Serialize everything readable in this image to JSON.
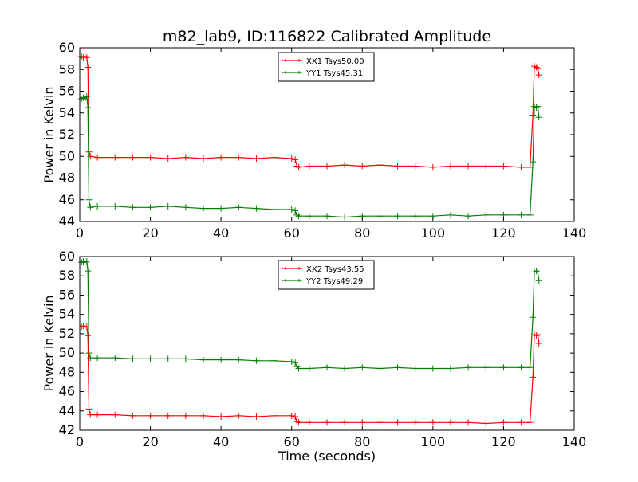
{
  "chart_data": [
    {
      "type": "line",
      "title": "m82_lab9, ID:116822 Calibrated Amplitude",
      "xlabel": "",
      "ylabel": "Power in Kelvin",
      "xlim": [
        0,
        140
      ],
      "ylim": [
        44,
        60
      ],
      "xticks": [
        "0",
        "20",
        "40",
        "60",
        "80",
        "100",
        "120",
        "140"
      ],
      "yticks": [
        "44",
        "46",
        "48",
        "50",
        "52",
        "54",
        "56",
        "58",
        "60"
      ],
      "legend_position": "top-center",
      "series": [
        {
          "name": "XX1 Tsys50.00",
          "color": "#ff0000",
          "points": [
            [
              0.5,
              59.2
            ],
            [
              1.0,
              59.1
            ],
            [
              1.5,
              59.2
            ],
            [
              2.0,
              59.1
            ],
            [
              2.3,
              58.2
            ],
            [
              2.6,
              50.4
            ],
            [
              3.0,
              50.0
            ],
            [
              5,
              49.9
            ],
            [
              10,
              49.9
            ],
            [
              15,
              49.9
            ],
            [
              20,
              49.9
            ],
            [
              25,
              49.8
            ],
            [
              30,
              49.9
            ],
            [
              35,
              49.8
            ],
            [
              40,
              49.9
            ],
            [
              45,
              49.9
            ],
            [
              50,
              49.8
            ],
            [
              55,
              49.9
            ],
            [
              60,
              49.8
            ],
            [
              61,
              49.7
            ],
            [
              61.5,
              49.1
            ],
            [
              62,
              49.0
            ],
            [
              65,
              49.1
            ],
            [
              70,
              49.1
            ],
            [
              75,
              49.2
            ],
            [
              80,
              49.1
            ],
            [
              85,
              49.2
            ],
            [
              90,
              49.1
            ],
            [
              95,
              49.1
            ],
            [
              100,
              49.0
            ],
            [
              105,
              49.1
            ],
            [
              110,
              49.1
            ],
            [
              115,
              49.1
            ],
            [
              120,
              49.1
            ],
            [
              125,
              49.0
            ],
            [
              127.5,
              49.0
            ],
            [
              128.3,
              53.8
            ],
            [
              128.7,
              58.3
            ],
            [
              129.3,
              58.2
            ],
            [
              129.7,
              58.1
            ],
            [
              130.0,
              57.5
            ]
          ]
        },
        {
          "name": "YY1 Tsys45.31",
          "color": "#008000",
          "points": [
            [
              0.5,
              55.3
            ],
            [
              1.0,
              55.4
            ],
            [
              1.5,
              55.3
            ],
            [
              2.0,
              55.5
            ],
            [
              2.3,
              54.5
            ],
            [
              2.6,
              46.0
            ],
            [
              3.0,
              45.3
            ],
            [
              5,
              45.4
            ],
            [
              10,
              45.4
            ],
            [
              15,
              45.3
            ],
            [
              20,
              45.3
            ],
            [
              25,
              45.4
            ],
            [
              30,
              45.3
            ],
            [
              35,
              45.2
            ],
            [
              40,
              45.2
            ],
            [
              45,
              45.3
            ],
            [
              50,
              45.2
            ],
            [
              55,
              45.1
            ],
            [
              60,
              45.1
            ],
            [
              61,
              45.0
            ],
            [
              61.5,
              44.6
            ],
            [
              62,
              44.5
            ],
            [
              65,
              44.5
            ],
            [
              70,
              44.5
            ],
            [
              75,
              44.4
            ],
            [
              80,
              44.5
            ],
            [
              85,
              44.5
            ],
            [
              90,
              44.5
            ],
            [
              95,
              44.5
            ],
            [
              100,
              44.5
            ],
            [
              105,
              44.6
            ],
            [
              110,
              44.5
            ],
            [
              115,
              44.6
            ],
            [
              120,
              44.6
            ],
            [
              125,
              44.6
            ],
            [
              127.5,
              44.6
            ],
            [
              128.3,
              49.5
            ],
            [
              128.7,
              54.6
            ],
            [
              129.3,
              54.5
            ],
            [
              129.7,
              54.6
            ],
            [
              130.0,
              53.6
            ]
          ]
        }
      ]
    },
    {
      "type": "line",
      "title": "",
      "xlabel": "Time (seconds)",
      "ylabel": "Power in Kelvin",
      "xlim": [
        0,
        140
      ],
      "ylim": [
        42,
        60
      ],
      "xticks": [
        "0",
        "20",
        "40",
        "60",
        "80",
        "100",
        "120",
        "140"
      ],
      "yticks": [
        "42",
        "44",
        "46",
        "48",
        "50",
        "52",
        "54",
        "56",
        "58",
        "60"
      ],
      "legend_position": "top-center",
      "series": [
        {
          "name": "XX2 Tsys43.55",
          "color": "#ff0000",
          "points": [
            [
              0.5,
              52.7
            ],
            [
              1.0,
              52.8
            ],
            [
              1.5,
              52.7
            ],
            [
              2.0,
              52.7
            ],
            [
              2.3,
              51.8
            ],
            [
              2.6,
              44.2
            ],
            [
              3.0,
              43.6
            ],
            [
              5,
              43.6
            ],
            [
              10,
              43.6
            ],
            [
              15,
              43.5
            ],
            [
              20,
              43.5
            ],
            [
              25,
              43.5
            ],
            [
              30,
              43.5
            ],
            [
              35,
              43.5
            ],
            [
              40,
              43.4
            ],
            [
              45,
              43.5
            ],
            [
              50,
              43.4
            ],
            [
              55,
              43.5
            ],
            [
              60,
              43.5
            ],
            [
              61,
              43.4
            ],
            [
              61.5,
              42.9
            ],
            [
              62,
              42.8
            ],
            [
              65,
              42.8
            ],
            [
              70,
              42.8
            ],
            [
              75,
              42.8
            ],
            [
              80,
              42.8
            ],
            [
              85,
              42.8
            ],
            [
              90,
              42.8
            ],
            [
              95,
              42.8
            ],
            [
              100,
              42.8
            ],
            [
              105,
              42.8
            ],
            [
              110,
              42.8
            ],
            [
              115,
              42.7
            ],
            [
              120,
              42.8
            ],
            [
              125,
              42.8
            ],
            [
              127.5,
              42.8
            ],
            [
              128.3,
              47.5
            ],
            [
              128.7,
              51.9
            ],
            [
              129.3,
              51.8
            ],
            [
              129.7,
              51.9
            ],
            [
              130.0,
              51.0
            ]
          ]
        },
        {
          "name": "YY2 Tsys49.29",
          "color": "#008000",
          "points": [
            [
              0.5,
              59.4
            ],
            [
              1.0,
              59.5
            ],
            [
              1.5,
              59.4
            ],
            [
              2.0,
              59.5
            ],
            [
              2.3,
              58.5
            ],
            [
              2.6,
              50.0
            ],
            [
              3.0,
              49.5
            ],
            [
              5,
              49.5
            ],
            [
              10,
              49.5
            ],
            [
              15,
              49.4
            ],
            [
              20,
              49.4
            ],
            [
              25,
              49.4
            ],
            [
              30,
              49.4
            ],
            [
              35,
              49.3
            ],
            [
              40,
              49.3
            ],
            [
              45,
              49.3
            ],
            [
              50,
              49.2
            ],
            [
              55,
              49.2
            ],
            [
              60,
              49.1
            ],
            [
              61,
              49.0
            ],
            [
              61.5,
              48.6
            ],
            [
              62,
              48.4
            ],
            [
              65,
              48.4
            ],
            [
              70,
              48.5
            ],
            [
              75,
              48.4
            ],
            [
              80,
              48.5
            ],
            [
              85,
              48.4
            ],
            [
              90,
              48.5
            ],
            [
              95,
              48.4
            ],
            [
              100,
              48.4
            ],
            [
              105,
              48.4
            ],
            [
              110,
              48.5
            ],
            [
              115,
              48.5
            ],
            [
              120,
              48.5
            ],
            [
              125,
              48.5
            ],
            [
              127.5,
              48.5
            ],
            [
              128.3,
              53.7
            ],
            [
              128.7,
              58.4
            ],
            [
              129.3,
              58.5
            ],
            [
              129.7,
              58.4
            ],
            [
              130.0,
              57.5
            ]
          ]
        }
      ]
    }
  ]
}
